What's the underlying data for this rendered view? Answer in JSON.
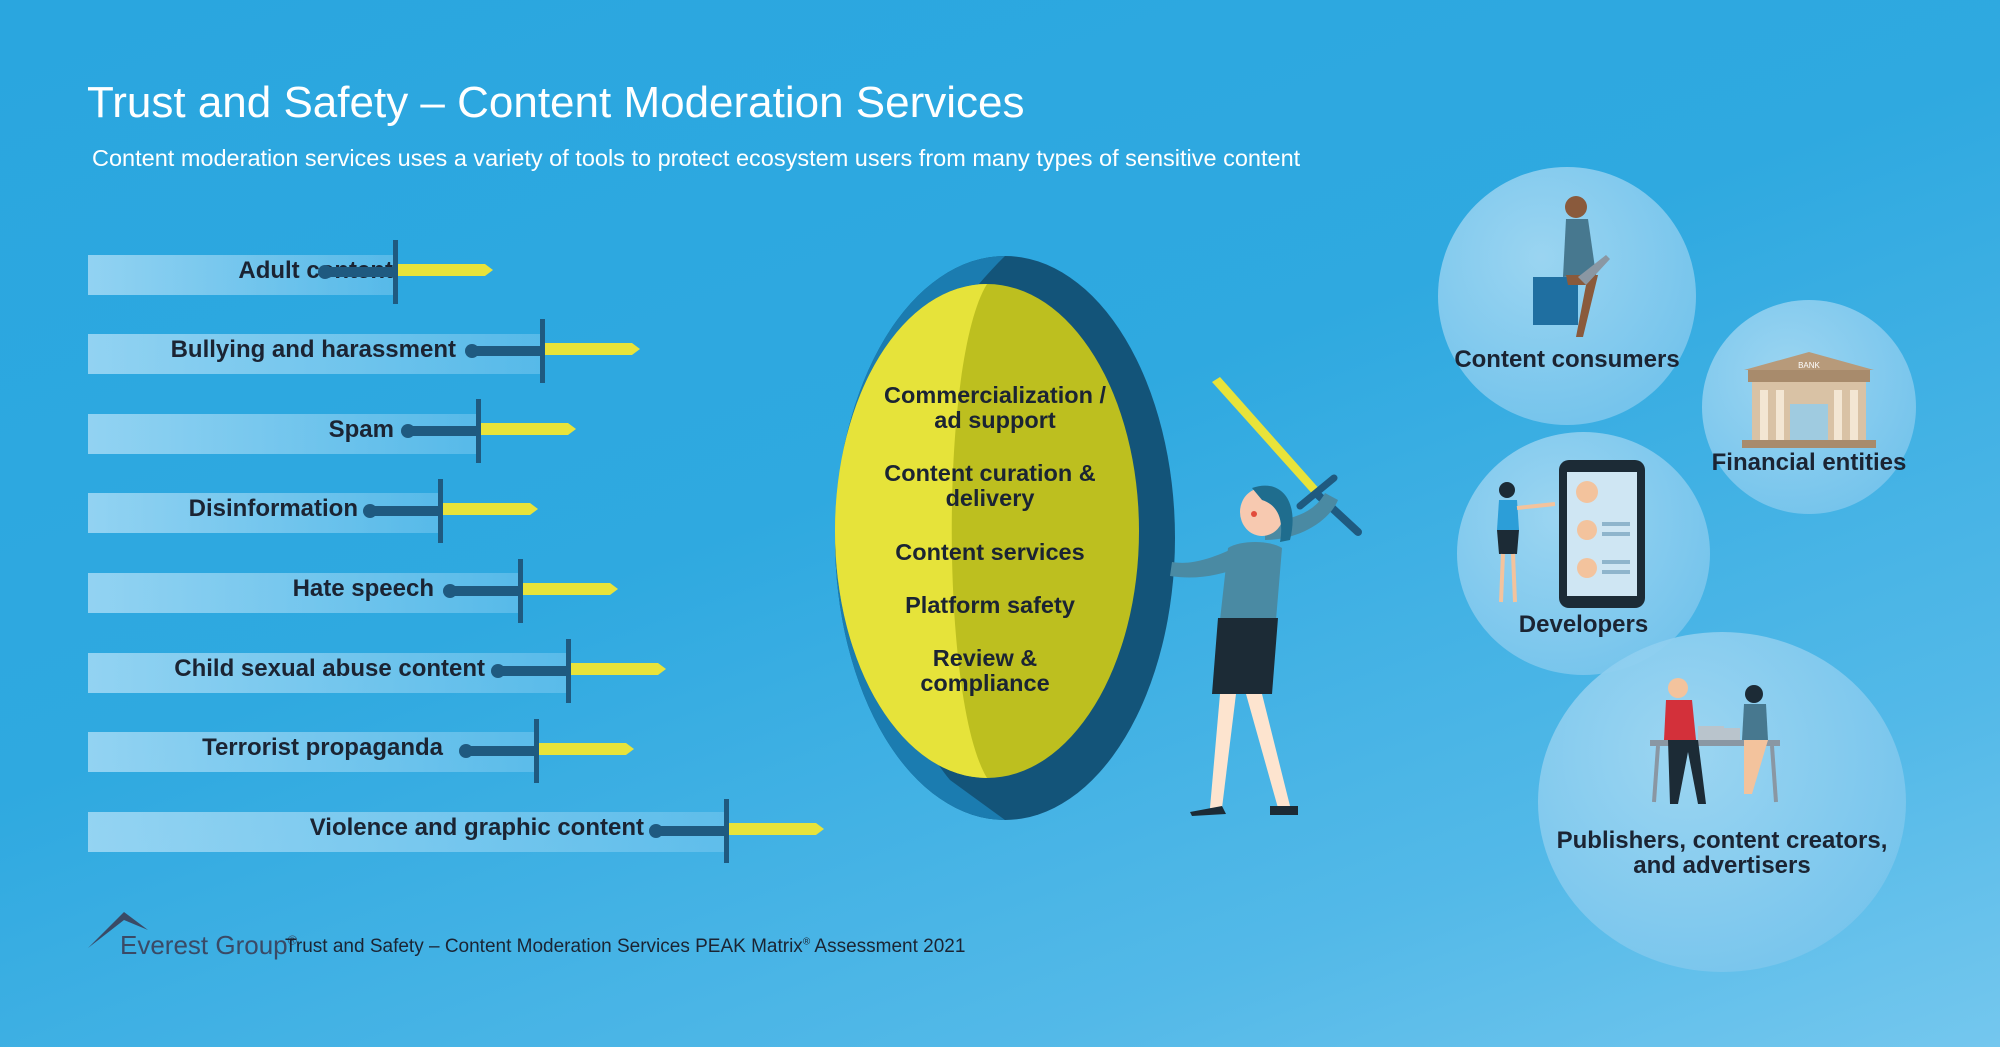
{
  "header": {
    "title": "Trust and Safety – Content Moderation Services",
    "subtitle": "Content moderation services uses a variety of tools to protect ecosystem users from many types of sensitive content"
  },
  "threats": [
    "Adult content",
    "Bullying and harassment",
    "Spam",
    "Disinformation",
    "Hate speech",
    "Child sexual abuse content",
    "Terrorist propaganda",
    "Violence and graphic content"
  ],
  "shield": {
    "items": [
      "Commercialization / ad support",
      "Content curation & delivery",
      "Content services",
      "Platform safety",
      "Review & compliance"
    ]
  },
  "ecosystem": {
    "content_consumers": "Content consumers",
    "financial_entities": "Financial entities",
    "bank_sign": "BANK",
    "developers": "Developers",
    "publishers": "Publishers, content creators, and advertisers"
  },
  "footer": {
    "logo": "Everest Group",
    "logo_mark": "®",
    "text_main": "Trust and Safety – Content Moderation Services PEAK Matrix",
    "text_mark": "®",
    "text_tail": " Assessment 2021"
  },
  "colors": {
    "background": "#2aa6df",
    "shield_outer": "#1b6a96",
    "shield_inner": "#e6e33a",
    "blade": "#e8e33a",
    "hilt": "#1f5a80"
  }
}
